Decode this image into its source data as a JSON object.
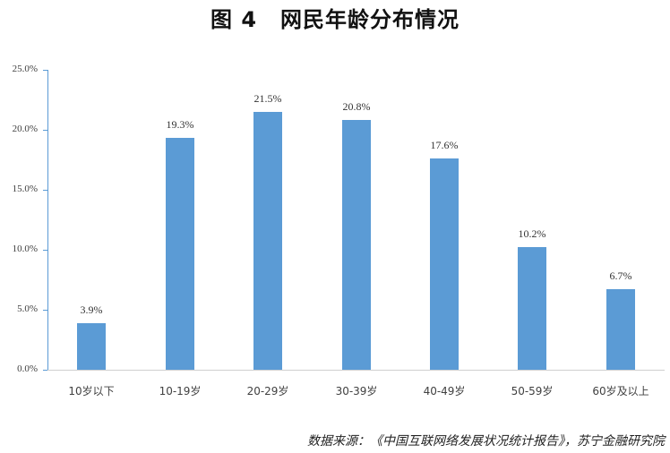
{
  "title": {
    "figure": "图 4",
    "text": "网民年龄分布情况"
  },
  "source": "数据来源：《中国互联网络发展状况统计报告》，苏宁金融研究院",
  "colors": {
    "bar": "#5b9bd5",
    "axis": "#5b9bd5",
    "baseline": "#d0d0d0"
  },
  "chart_data": {
    "type": "bar",
    "title": "图 4 网民年龄分布情况",
    "xlabel": "",
    "ylabel": "",
    "categories": [
      "10岁以下",
      "10-19岁",
      "20-29岁",
      "30-39岁",
      "40-49岁",
      "50-59岁",
      "60岁及以上"
    ],
    "values": [
      3.9,
      19.3,
      21.5,
      20.8,
      17.6,
      10.2,
      6.7
    ],
    "value_labels": [
      "3.9%",
      "19.3%",
      "21.5%",
      "20.8%",
      "17.6%",
      "10.2%",
      "6.7%"
    ],
    "ylim": [
      0,
      25
    ],
    "yticks": [
      "0.0%",
      "5.0%",
      "10.0%",
      "15.0%",
      "20.0%",
      "25.0%"
    ],
    "grid": false,
    "legend": null,
    "annotation": "数据来源：《中国互联网络发展状况统计报告》，苏宁金融研究院"
  }
}
